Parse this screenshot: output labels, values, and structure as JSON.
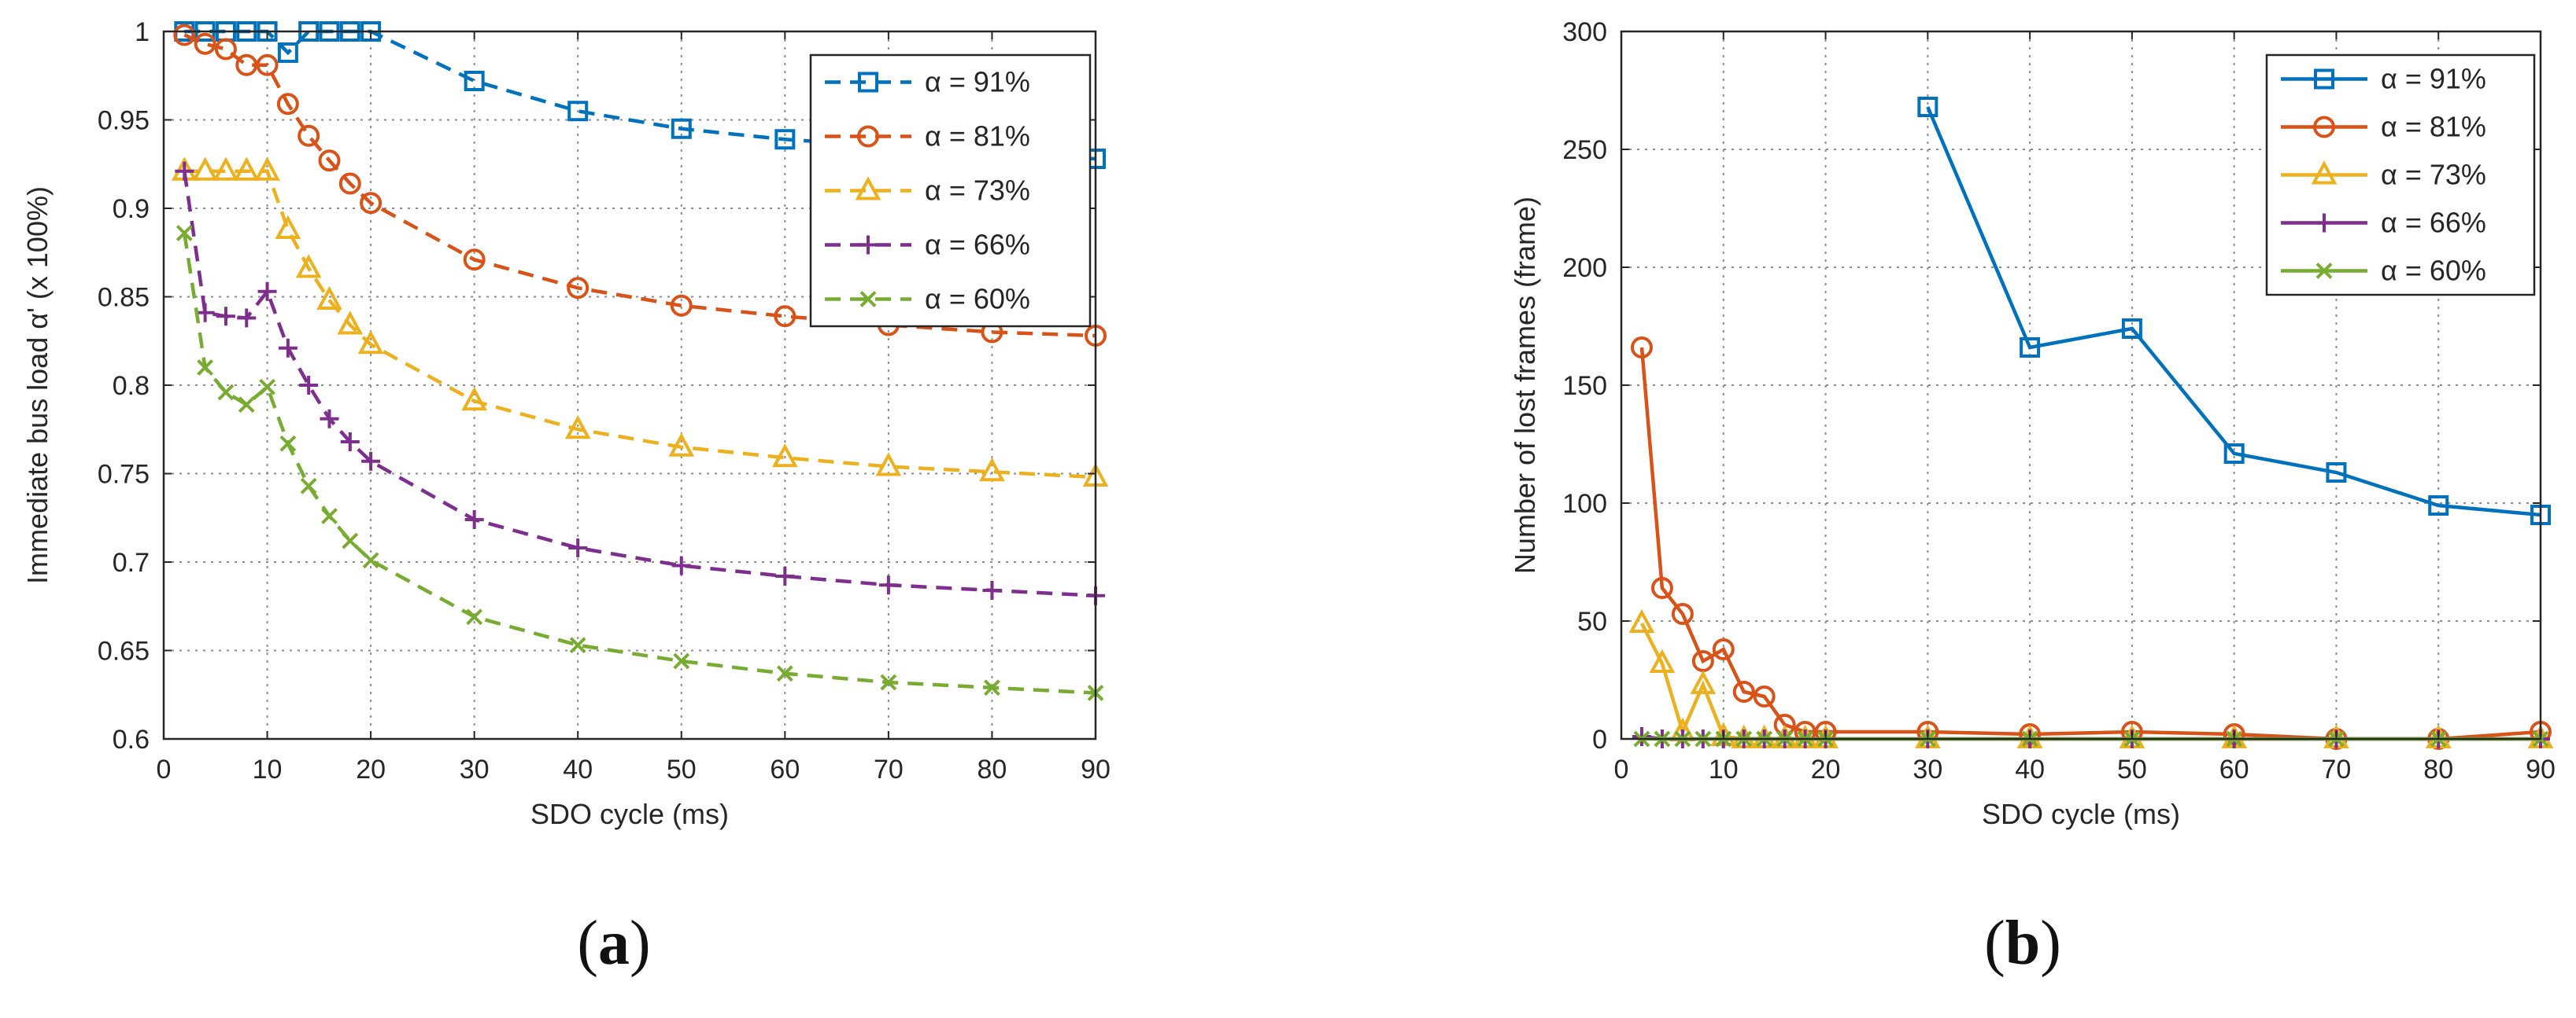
{
  "chart_data": [
    {
      "type": "line",
      "panel": "a",
      "caption": "a",
      "xlabel": "SDO cycle (ms)",
      "ylabel": "Immediate bus load α' (x 100%)",
      "xlim": [
        0,
        90
      ],
      "ylim": [
        0.6,
        1
      ],
      "xticks": [
        "0",
        "10",
        "20",
        "30",
        "40",
        "50",
        "60",
        "70",
        "80",
        "90"
      ],
      "yticks": [
        "0.6",
        "0.65",
        "0.7",
        "0.75",
        "0.8",
        "0.85",
        "0.9",
        "0.95",
        "1"
      ],
      "grid": true,
      "line_style": "dashed",
      "legend_position": "top-right",
      "series": [
        {
          "name": "α = 91%",
          "color": "#0072BD",
          "marker": "square",
          "x": [
            2,
            4,
            6,
            8,
            10,
            12,
            14,
            16,
            18,
            20,
            30,
            40,
            50,
            60,
            70,
            80,
            90
          ],
          "y": [
            1,
            1,
            1,
            1,
            1,
            0.988,
            1,
            1,
            1,
            1,
            0.972,
            0.955,
            0.945,
            0.939,
            0.935,
            0.931,
            0.928
          ]
        },
        {
          "name": "α = 81%",
          "color": "#D95319",
          "marker": "circle",
          "x": [
            2,
            4,
            6,
            8,
            10,
            12,
            14,
            16,
            18,
            20,
            30,
            40,
            50,
            60,
            70,
            80,
            90
          ],
          "y": [
            0.998,
            0.993,
            0.99,
            0.981,
            0.981,
            0.959,
            0.941,
            0.927,
            0.914,
            0.903,
            0.871,
            0.855,
            0.845,
            0.839,
            0.834,
            0.83,
            0.828
          ]
        },
        {
          "name": "α = 73%",
          "color": "#EDB120",
          "marker": "triangle",
          "x": [
            2,
            4,
            6,
            8,
            10,
            12,
            14,
            16,
            18,
            20,
            30,
            40,
            50,
            60,
            70,
            80,
            90
          ],
          "y": [
            0.921,
            0.921,
            0.921,
            0.921,
            0.921,
            0.888,
            0.866,
            0.848,
            0.834,
            0.823,
            0.791,
            0.775,
            0.765,
            0.759,
            0.754,
            0.751,
            0.748
          ]
        },
        {
          "name": "α = 66%",
          "color": "#7E2F8E",
          "marker": "plus",
          "x": [
            2,
            4,
            6,
            8,
            10,
            12,
            14,
            16,
            18,
            20,
            30,
            40,
            50,
            60,
            70,
            80,
            90
          ],
          "y": [
            0.921,
            0.841,
            0.839,
            0.838,
            0.853,
            0.821,
            0.8,
            0.781,
            0.768,
            0.757,
            0.724,
            0.708,
            0.698,
            0.692,
            0.687,
            0.684,
            0.681
          ]
        },
        {
          "name": "α = 60%",
          "color": "#77AC30",
          "marker": "x",
          "x": [
            2,
            4,
            6,
            8,
            10,
            12,
            14,
            16,
            18,
            20,
            30,
            40,
            50,
            60,
            70,
            80,
            90
          ],
          "y": [
            0.886,
            0.81,
            0.796,
            0.789,
            0.799,
            0.767,
            0.743,
            0.726,
            0.712,
            0.701,
            0.669,
            0.653,
            0.644,
            0.637,
            0.632,
            0.629,
            0.626
          ]
        }
      ]
    },
    {
      "type": "line",
      "panel": "b",
      "caption": "b",
      "xlabel": "SDO cycle (ms)",
      "ylabel": "Number of lost frames (frame)",
      "xlim": [
        0,
        90
      ],
      "ylim": [
        0,
        300
      ],
      "xticks": [
        "0",
        "10",
        "20",
        "30",
        "40",
        "50",
        "60",
        "70",
        "80",
        "90"
      ],
      "yticks": [
        "0",
        "50",
        "100",
        "150",
        "200",
        "250",
        "300"
      ],
      "grid": true,
      "line_style": "solid",
      "legend_position": "top-right",
      "series": [
        {
          "name": "α = 91%",
          "color": "#0072BD",
          "marker": "square",
          "x": [
            30,
            40,
            50,
            60,
            70,
            80,
            90
          ],
          "y": [
            268,
            166,
            174,
            121,
            113,
            99,
            95
          ]
        },
        {
          "name": "α = 81%",
          "color": "#D95319",
          "marker": "circle",
          "x": [
            2,
            4,
            6,
            8,
            10,
            12,
            14,
            16,
            18,
            20,
            30,
            40,
            50,
            60,
            70,
            80,
            90
          ],
          "y": [
            166,
            64,
            53,
            33,
            38,
            20,
            18,
            6,
            3,
            3,
            3,
            2,
            3,
            2,
            0,
            0,
            3
          ]
        },
        {
          "name": "α = 73%",
          "color": "#EDB120",
          "marker": "triangle",
          "x": [
            2,
            4,
            6,
            8,
            10,
            12,
            14,
            16,
            18,
            20,
            30,
            40,
            50,
            60,
            70,
            80,
            90
          ],
          "y": [
            49,
            32,
            3,
            23,
            1,
            0,
            0,
            0,
            0,
            0,
            0,
            0,
            0,
            0,
            0,
            0,
            0
          ]
        },
        {
          "name": "α = 66%",
          "color": "#7E2F8E",
          "marker": "plus",
          "x": [
            2,
            4,
            6,
            8,
            10,
            12,
            14,
            16,
            18,
            20,
            30,
            40,
            50,
            60,
            70,
            80,
            90
          ],
          "y": [
            1,
            0,
            0,
            0,
            0,
            0,
            0,
            0,
            0,
            0,
            0,
            0,
            0,
            0,
            0,
            0,
            0
          ]
        },
        {
          "name": "α = 60%",
          "color": "#77AC30",
          "marker": "x",
          "x": [
            2,
            4,
            6,
            8,
            10,
            12,
            14,
            16,
            18,
            20,
            30,
            40,
            50,
            60,
            70,
            80,
            90
          ],
          "y": [
            0,
            0,
            0,
            0,
            0,
            0,
            0,
            0,
            0,
            0,
            0,
            0,
            0,
            0,
            0,
            0,
            0
          ]
        }
      ]
    }
  ]
}
